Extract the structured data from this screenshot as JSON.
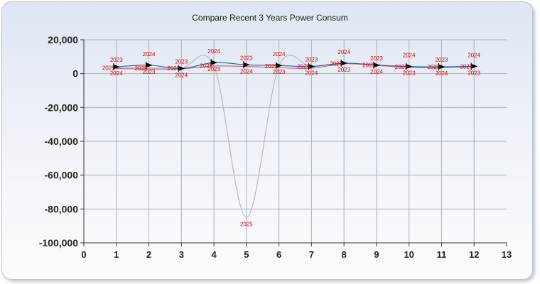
{
  "chart_data": {
    "type": "line",
    "title": "Compare Recent 3 Years Power Consum",
    "xlabel": "",
    "ylabel": "",
    "xlim": [
      0,
      13
    ],
    "ylim": [
      -100000,
      20000
    ],
    "x_ticks": [
      0,
      1,
      2,
      3,
      4,
      5,
      6,
      7,
      8,
      9,
      10,
      11,
      12,
      13
    ],
    "y_ticks": [
      20000,
      0,
      -20000,
      -40000,
      -60000,
      -80000,
      -100000
    ],
    "y_tick_labels": [
      "20,000",
      "0",
      "-20,000",
      "-40,000",
      "-60,000",
      "-80,000",
      "-100,000"
    ],
    "grid": true,
    "legend": "none",
    "x": [
      1,
      2,
      3,
      4,
      5,
      6,
      7,
      8,
      9,
      10,
      11,
      12
    ],
    "series": [
      {
        "name": "2023",
        "color": "#1f5fa8",
        "values": [
          4000,
          5000,
          3000,
          6500,
          5200,
          4800,
          4200,
          6200,
          5000,
          4200,
          4000,
          4300
        ]
      },
      {
        "name": "2024",
        "color": "#d06060",
        "values": [
          3000,
          2700,
          2800,
          4500,
          4200,
          3500,
          3200,
          5800,
          4800,
          3700,
          3600,
          4100
        ]
      },
      {
        "name": "2025",
        "color": "#b8b8b8",
        "values": [
          3500,
          3200,
          3300,
          4600,
          -85000,
          4400,
          4300,
          6000,
          5200,
          4000,
          4000,
          4200
        ]
      }
    ],
    "annotations": {
      "point_labels": [
        "2023",
        "2024",
        "2025"
      ]
    }
  }
}
